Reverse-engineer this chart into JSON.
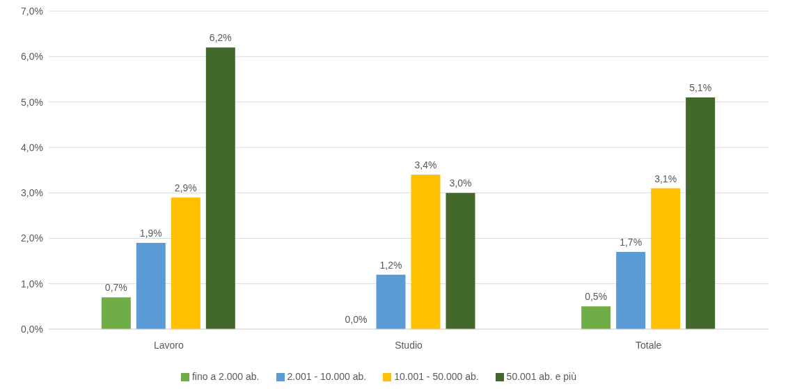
{
  "chart_data": {
    "type": "bar",
    "categories": [
      "Lavoro",
      "Studio",
      "Totale"
    ],
    "series": [
      {
        "name": "fino a 2.000 ab.",
        "color": "#70ad47",
        "values": [
          0.7,
          0.0,
          0.5
        ],
        "value_labels": [
          "0,7%",
          "0,0%",
          "0,5%"
        ]
      },
      {
        "name": "2.001 - 10.000 ab.",
        "color": "#5b9bd5",
        "values": [
          1.9,
          1.2,
          1.7
        ],
        "value_labels": [
          "1,9%",
          "1,2%",
          "1,7%"
        ]
      },
      {
        "name": "10.001 - 50.000 ab.",
        "color": "#ffc000",
        "values": [
          2.9,
          3.4,
          3.1
        ],
        "value_labels": [
          "2,9%",
          "3,4%",
          "3,1%"
        ]
      },
      {
        "name": "50.001 ab. e più",
        "color": "#43682b",
        "values": [
          6.2,
          3.0,
          5.1
        ],
        "value_labels": [
          "6,2%",
          "3,0%",
          "5,1%"
        ]
      }
    ],
    "ylim": [
      0,
      7
    ],
    "yticks": [
      {
        "value": 0,
        "label": "0,0%"
      },
      {
        "value": 1,
        "label": "1,0%"
      },
      {
        "value": 2,
        "label": "2,0%"
      },
      {
        "value": 3,
        "label": "3,0%"
      },
      {
        "value": 4,
        "label": "4,0%"
      },
      {
        "value": 5,
        "label": "5,0%"
      },
      {
        "value": 6,
        "label": "6,0%"
      },
      {
        "value": 7,
        "label": "7,0%"
      }
    ],
    "grid": "y",
    "legend": "bottom"
  }
}
